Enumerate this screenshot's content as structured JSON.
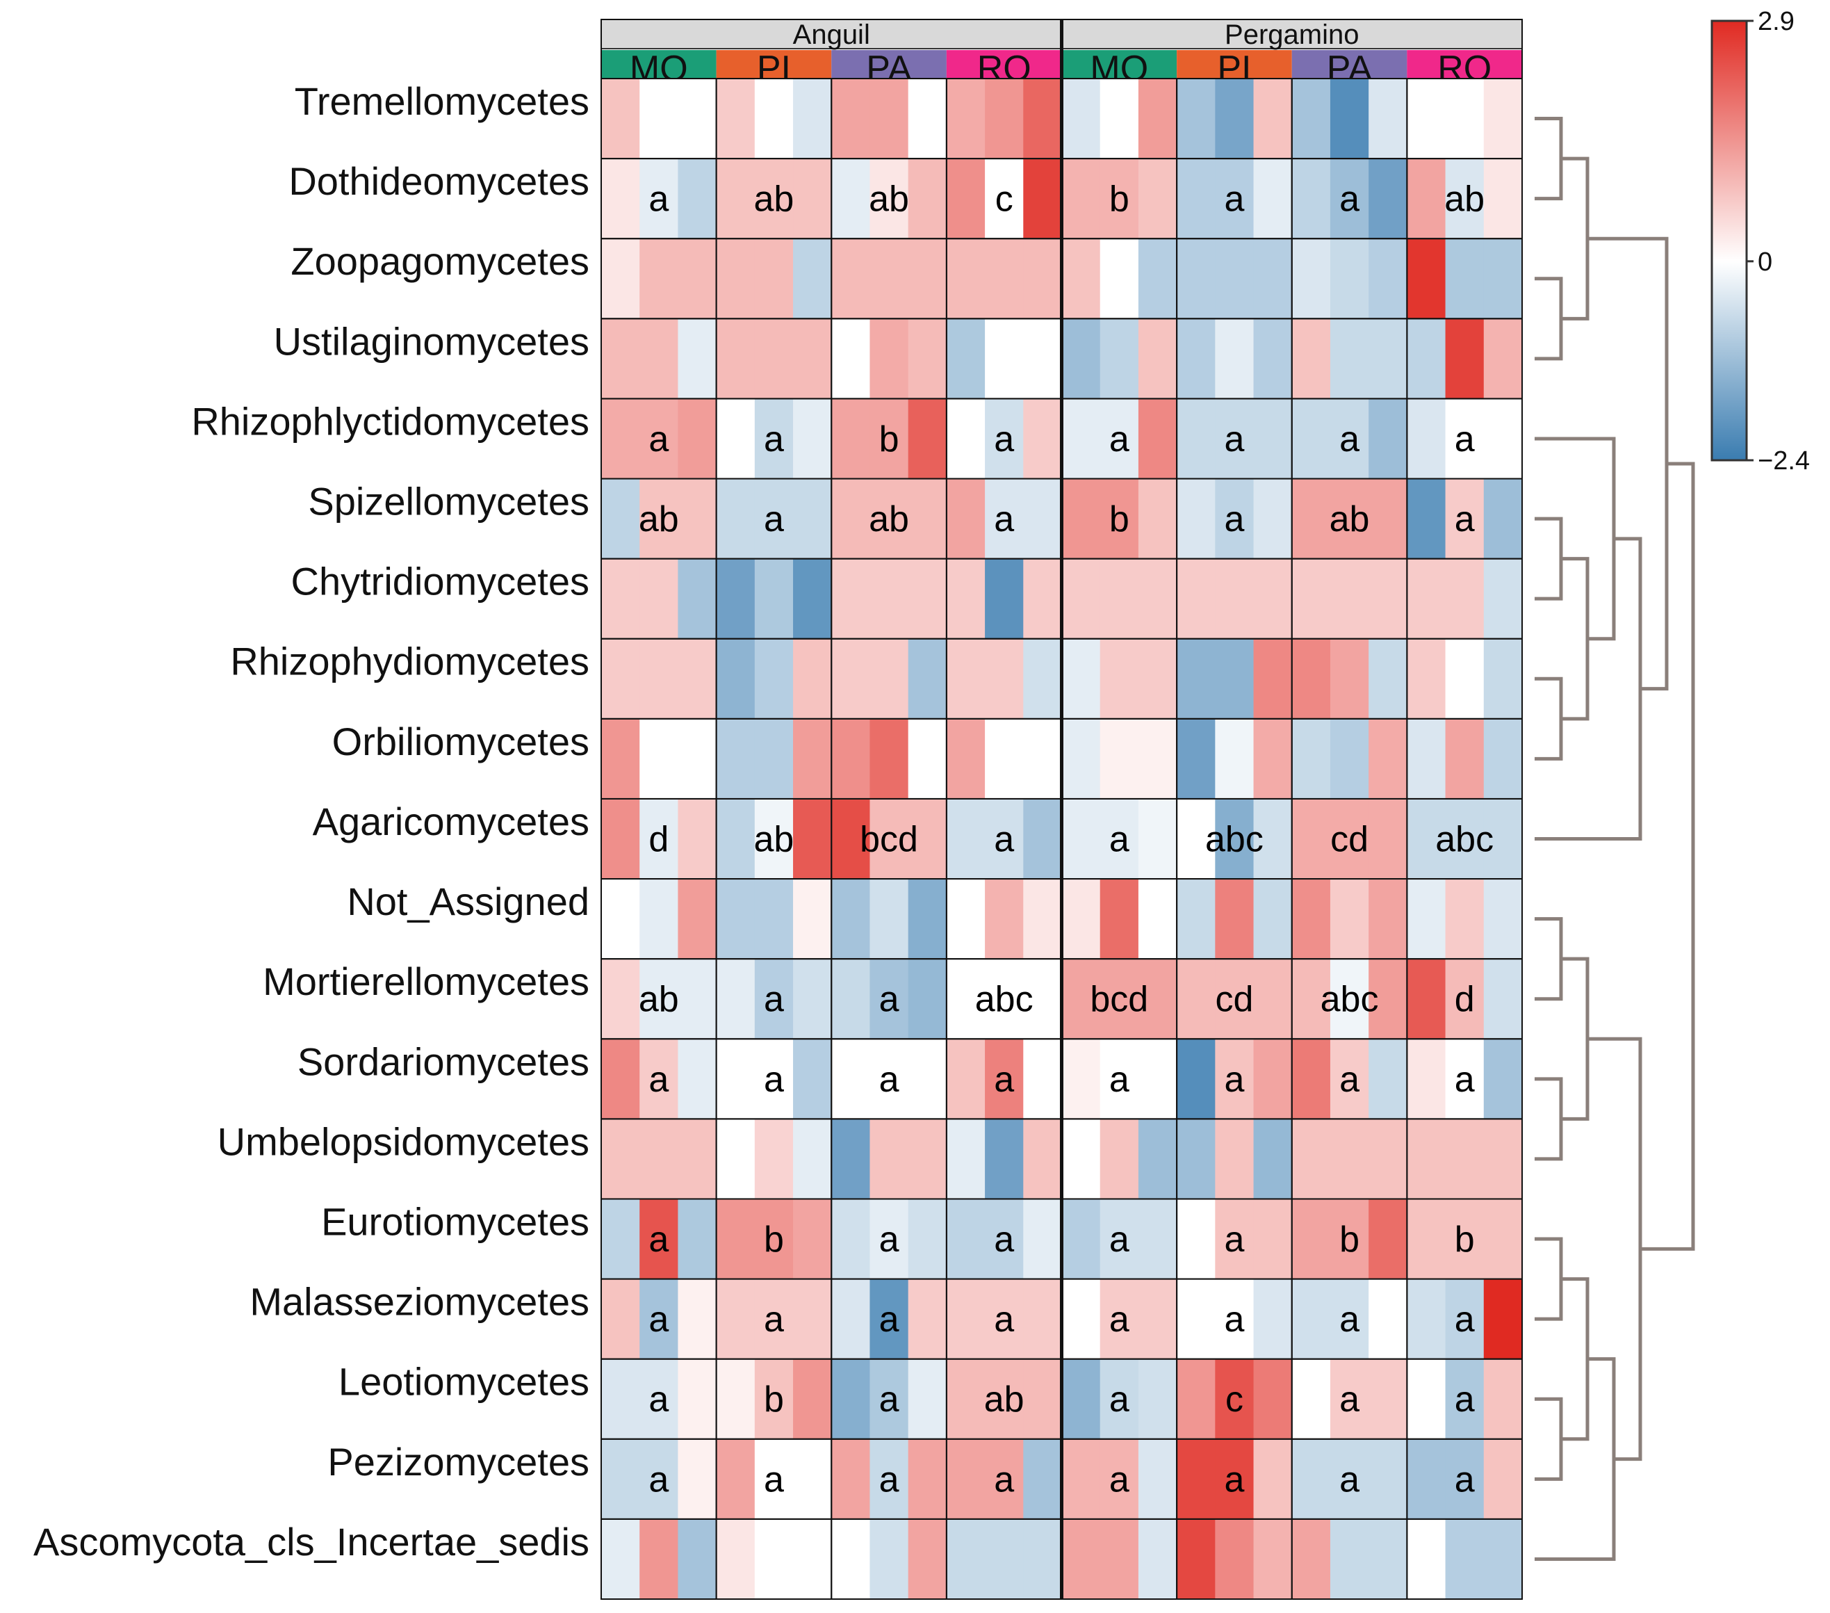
{
  "chart_data": {
    "type": "heatmap",
    "title": "",
    "color_scale": {
      "min": -2.4,
      "max": 2.9,
      "tick_labels": [
        "2.9",
        "0",
        "−2.4"
      ],
      "tick_values": [
        2.9,
        0,
        -2.4
      ],
      "low_color": "#3a7cb0",
      "mid_color": "#ffffff",
      "high_color": "#e02a22"
    },
    "sites": [
      {
        "name": "Anguil",
        "treatments": [
          "MO",
          "PI",
          "PA",
          "RO"
        ]
      },
      {
        "name": "Pergamino",
        "treatments": [
          "MO",
          "PI",
          "PA",
          "RO"
        ]
      }
    ],
    "treatment_colors": {
      "MO": "#1b9e77",
      "PI": "#e7602c",
      "PA": "#7b6fb0",
      "RO": "#f0288a"
    },
    "columns_per_treatment": 3,
    "rows": [
      {
        "name": "Tremellomycetes",
        "values": [
          0.6,
          0,
          0,
          0.5,
          0,
          -0.3,
          1.0,
          1.0,
          0,
          0.9,
          1.2,
          1.9,
          -0.3,
          0,
          1.1,
          -0.9,
          -1.5,
          0.6,
          -0.9,
          -2.0,
          -0.3,
          0,
          0,
          0.2
        ],
        "letters": [
          "",
          "",
          "",
          "",
          "",
          "",
          "",
          ""
        ]
      },
      {
        "name": "Dothideomycetes",
        "values": [
          0.2,
          -0.2,
          -0.6,
          0.6,
          0.6,
          0.6,
          -0.2,
          0.2,
          0.7,
          1.3,
          0,
          2.5,
          0.8,
          0.8,
          0.6,
          -0.7,
          -0.7,
          -0.2,
          -0.6,
          -1.0,
          -1.6,
          1.0,
          -0.3,
          0.2
        ],
        "letters": [
          "a",
          "ab",
          "ab",
          "c",
          "b",
          "a",
          "a",
          "ab"
        ]
      },
      {
        "name": "Zoopagomycetes",
        "values": [
          0.2,
          0.7,
          0.7,
          0.7,
          0.7,
          -0.6,
          0.7,
          0.7,
          0.7,
          0.7,
          0.7,
          0.7,
          0.6,
          0,
          -0.7,
          -0.7,
          -0.7,
          -0.7,
          -0.3,
          -0.5,
          -0.7,
          2.7,
          -0.8,
          -0.8
        ],
        "letters": [
          "",
          "",
          "",
          "",
          "",
          "",
          "",
          ""
        ]
      },
      {
        "name": "Ustilaginomycetes",
        "values": [
          0.7,
          0.7,
          -0.2,
          0.7,
          0.7,
          0.7,
          0,
          0.9,
          0.7,
          -0.8,
          0,
          0,
          -1.0,
          -0.6,
          0.6,
          -0.7,
          -0.2,
          -0.7,
          0.6,
          -0.5,
          -0.5,
          -0.6,
          2.5,
          0.8
        ],
        "letters": [
          "",
          "",
          "",
          "",
          "",
          "",
          "",
          ""
        ]
      },
      {
        "name": "Rhizophlyctidomycetes",
        "values": [
          0.9,
          0.9,
          1.1,
          0,
          -0.5,
          -0.2,
          1.0,
          1.0,
          2.0,
          0,
          -0.4,
          0.5,
          -0.2,
          -0.2,
          1.4,
          -0.5,
          -0.5,
          -0.5,
          -0.5,
          -0.5,
          -1.0,
          -0.3,
          0,
          0
        ],
        "letters": [
          "a",
          "a",
          "b",
          "a",
          "a",
          "a",
          "a",
          "a"
        ]
      },
      {
        "name": "Spizellomycetes",
        "values": [
          -0.6,
          0.6,
          0.6,
          -0.5,
          -0.5,
          -0.5,
          0.7,
          0.7,
          0.7,
          1.0,
          -0.3,
          -0.3,
          1.2,
          1.2,
          0.6,
          -0.3,
          -0.6,
          -0.3,
          1.0,
          1.0,
          1.0,
          -1.8,
          0.5,
          -1.0
        ],
        "letters": [
          "ab",
          "a",
          "ab",
          "a",
          "b",
          "a",
          "ab",
          "a"
        ]
      },
      {
        "name": "Chytridiomycetes",
        "values": [
          0.5,
          0.5,
          -0.9,
          -1.6,
          -0.8,
          -1.8,
          0.5,
          0.5,
          0.5,
          0.5,
          -1.9,
          0.5,
          0.5,
          0.5,
          0.5,
          0.5,
          0.5,
          0.5,
          0.5,
          0.5,
          0.5,
          0.5,
          0.5,
          -0.4
        ],
        "letters": [
          "",
          "",
          "",
          "",
          "",
          "",
          "",
          ""
        ]
      },
      {
        "name": "Rhizophydiomycetes",
        "values": [
          0.5,
          0.5,
          0.5,
          -1.2,
          -0.7,
          0.6,
          0.5,
          0.5,
          -0.9,
          0.5,
          0.5,
          -0.4,
          -0.2,
          0.5,
          0.5,
          -1.2,
          -1.2,
          1.4,
          1.4,
          1.0,
          -0.5,
          0.5,
          0,
          -0.5
        ],
        "letters": [
          "",
          "",
          "",
          "",
          "",
          "",
          "",
          ""
        ]
      },
      {
        "name": "Orbiliomycetes",
        "values": [
          1.2,
          0,
          0,
          -0.7,
          -0.7,
          1.1,
          1.3,
          1.8,
          0,
          1.0,
          0,
          0,
          -0.2,
          0.1,
          0.1,
          -1.6,
          -0.1,
          0.9,
          -0.5,
          -0.7,
          0.9,
          -0.3,
          1.0,
          -0.6
        ],
        "letters": [
          "",
          "",
          "",
          "",
          "",
          "",
          "",
          ""
        ]
      },
      {
        "name": "Agaricomycetes",
        "values": [
          1.3,
          -0.2,
          0.5,
          -0.6,
          -0.1,
          2.1,
          2.3,
          0.7,
          0.7,
          -0.4,
          -0.4,
          -0.9,
          -0.2,
          -0.2,
          -0.1,
          0,
          -1.3,
          -0.4,
          0.9,
          0.9,
          0.9,
          -0.5,
          -0.5,
          -0.5
        ],
        "letters": [
          "d",
          "ab",
          "bcd",
          "a",
          "a",
          "abc",
          "cd",
          "abc"
        ]
      },
      {
        "name": "Not_Assigned",
        "values": [
          0,
          -0.2,
          1.1,
          -0.7,
          -0.7,
          0.1,
          -0.9,
          -0.4,
          -1.3,
          0,
          0.8,
          0.2,
          0.2,
          1.8,
          0,
          -0.5,
          1.5,
          -0.5,
          1.3,
          0.5,
          1.0,
          -0.2,
          0.5,
          -0.3
        ],
        "letters": [
          "",
          "",
          "",
          "",
          "",
          "",
          "",
          ""
        ]
      },
      {
        "name": "Mortierellomycetes",
        "values": [
          0.4,
          -0.2,
          -0.2,
          -0.2,
          -0.7,
          -0.4,
          -0.5,
          -0.9,
          -1.1,
          0,
          0,
          0,
          1.0,
          1.0,
          1.0,
          0.7,
          0.7,
          0.7,
          0.7,
          -0.1,
          1.1,
          2.1,
          0.7,
          -0.4
        ],
        "letters": [
          "ab",
          "a",
          "a",
          "abc",
          "bcd",
          "cd",
          "abc",
          "d"
        ]
      },
      {
        "name": "Sordariomycetes",
        "values": [
          1.4,
          0.5,
          -0.2,
          0,
          0,
          -0.7,
          0,
          0,
          0,
          0.6,
          1.5,
          0,
          0.1,
          0,
          0,
          -2.0,
          0.6,
          1.0,
          1.6,
          0.5,
          -0.5,
          0.2,
          0,
          -0.9
        ],
        "letters": [
          "a",
          "a",
          "a",
          "a",
          "a",
          "a",
          "a",
          "a"
        ]
      },
      {
        "name": "Umbelopsidomycetes",
        "values": [
          0.6,
          0.6,
          0.6,
          0,
          0.4,
          -0.2,
          -1.6,
          0.6,
          0.6,
          -0.2,
          -1.6,
          0.6,
          0,
          0.6,
          -1.0,
          -1.0,
          0.6,
          -1.1,
          0.6,
          0.6,
          0.6,
          0.6,
          0.6,
          0.6
        ],
        "letters": [
          "",
          "",
          "",
          "",
          "",
          "",
          "",
          ""
        ]
      },
      {
        "name": "Eurotiomycetes",
        "values": [
          -0.6,
          2.2,
          -0.8,
          1.2,
          1.2,
          1.0,
          -0.4,
          -0.2,
          -0.4,
          -0.6,
          -0.6,
          -0.2,
          -0.7,
          -0.4,
          -0.4,
          0,
          0.6,
          0.6,
          1.0,
          1.0,
          1.8,
          0.6,
          0.6,
          0.6
        ],
        "letters": [
          "a",
          "b",
          "a",
          "a",
          "a",
          "a",
          "b",
          "b"
        ]
      },
      {
        "name": "Malasseziomycetes",
        "values": [
          0.6,
          -0.9,
          0.1,
          0.5,
          0.5,
          0.5,
          -0.3,
          -1.8,
          0.5,
          0.5,
          0.5,
          0.5,
          0,
          0.5,
          0.5,
          0,
          0,
          -0.3,
          -0.4,
          -0.4,
          0,
          -0.4,
          -0.6,
          2.9
        ],
        "letters": [
          "a",
          "a",
          "a",
          "a",
          "a",
          "a",
          "a",
          "a"
        ]
      },
      {
        "name": "Leotiomycetes",
        "values": [
          -0.3,
          -0.3,
          0.1,
          0.1,
          0.6,
          1.2,
          -1.3,
          -0.8,
          -0.2,
          0.7,
          0.7,
          0.7,
          -1.2,
          -0.5,
          -0.4,
          1.2,
          2.2,
          1.6,
          0,
          0.5,
          0.5,
          0,
          -0.8,
          0.6
        ],
        "letters": [
          "a",
          "b",
          "a",
          "ab",
          "a",
          "c",
          "a",
          "a"
        ]
      },
      {
        "name": "Pezizomycetes",
        "values": [
          -0.5,
          -0.5,
          0.1,
          1.0,
          0,
          0,
          1.0,
          -0.5,
          1.0,
          1.0,
          1.0,
          -0.9,
          0.8,
          0.8,
          -0.3,
          2.4,
          2.4,
          0.6,
          -0.5,
          -0.5,
          -0.5,
          -0.9,
          -0.9,
          0.6
        ],
        "letters": [
          "a",
          "a",
          "a",
          "a",
          "a",
          "a",
          "a",
          "a"
        ]
      },
      {
        "name": "Ascomycota_cls_Incertae_sedis",
        "values": [
          -0.2,
          1.2,
          -0.9,
          0.2,
          0,
          0,
          0,
          -0.4,
          1.0,
          -0.5,
          -0.5,
          -0.5,
          1.0,
          1.0,
          -0.3,
          2.4,
          1.4,
          0.8,
          1.0,
          -0.5,
          -0.5,
          0,
          -0.7,
          -0.7
        ],
        "letters": [
          "",
          "",
          "",
          "",
          "",
          "",
          "",
          ""
        ]
      }
    ],
    "dendrogram_merges": [
      [
        0,
        1
      ],
      [
        2,
        3
      ],
      [
        "g0",
        "g1"
      ],
      [
        5,
        6
      ],
      [
        7,
        8
      ],
      [
        "g3",
        "g4"
      ],
      [
        4,
        "g5"
      ],
      [
        9,
        "g6"
      ],
      [
        "g2",
        "g7"
      ],
      [
        10,
        11
      ],
      [
        12,
        13
      ],
      [
        "g9",
        "g10"
      ],
      [
        14,
        15
      ],
      [
        16,
        17
      ],
      [
        "g12",
        "g13"
      ],
      [
        18,
        "g14"
      ],
      [
        "g11",
        "g15"
      ],
      [
        "g8",
        "g16"
      ]
    ]
  }
}
